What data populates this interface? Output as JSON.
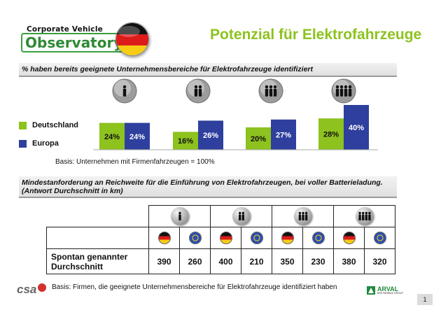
{
  "header": {
    "logo_line1": "Corporate Vehicle",
    "logo_line2": "Observatory",
    "title": "Potenzial für Elektrofahrzeuge"
  },
  "section1": {
    "heading": "% haben bereits geeignete Unternehmensbereiche für Elektrofahrzeuge identifiziert",
    "basis": "Basis: Unternehmen mit Firmenfahrzeugen = 100%"
  },
  "chart_data": {
    "type": "bar",
    "title": "% haben bereits geeignete Unternehmensbereiche für Elektrofahrzeuge identifiziert",
    "categories": [
      "1",
      "2",
      "3",
      "4"
    ],
    "series": [
      {
        "name": "Deutschland",
        "values": [
          24,
          16,
          20,
          28
        ],
        "labels": [
          "24%",
          "16%",
          "20%",
          "28%"
        ],
        "color": "#8dc21f"
      },
      {
        "name": "Europa",
        "values": [
          24,
          26,
          27,
          40
        ],
        "labels": [
          "24%",
          "26%",
          "27%",
          "40%"
        ],
        "color": "#2e3f9e"
      }
    ],
    "ylim": [
      0,
      40
    ],
    "xlabel": "",
    "ylabel": "",
    "legend": "left"
  },
  "section2": {
    "heading_line1": "Mindestanforderung an Reichweite für die Einführung von Elektrofahrzeugen, bei voller Batterieladung.",
    "heading_line2": "(Antwort Durchschnitt in km)",
    "row_label_line1": "Spontan genannter",
    "row_label_line2": "Durchschnitt",
    "values": [
      "390",
      "260",
      "400",
      "210",
      "350",
      "230",
      "380",
      "320"
    ],
    "basis": "Basis: Firmen, die geeignete Unternehmensbereiche für Elektrofahrzeuge identifiziert haben"
  },
  "footer": {
    "csa": "csa",
    "arval": "ARVAL",
    "arval_sub": "BNP PARIBAS GROUP",
    "page": "1"
  },
  "colors": {
    "green": "#8dc21f",
    "blue": "#2e3f9e",
    "title": "#8dc21f"
  }
}
